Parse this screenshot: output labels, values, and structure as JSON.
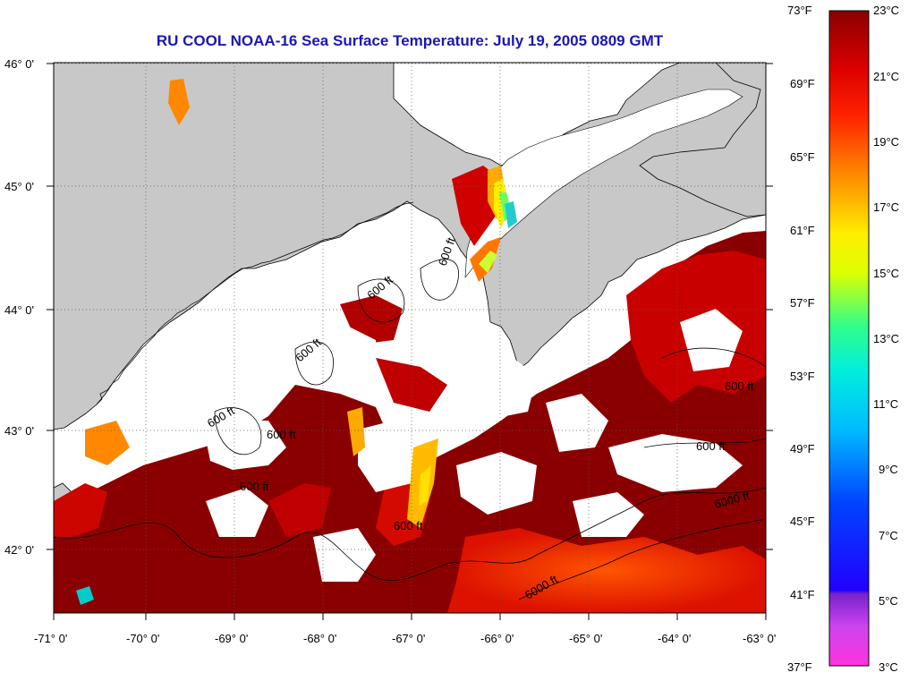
{
  "title": "RU COOL  NOAA-16  Sea Surface Temperature:  July 19, 2005 0809 GMT",
  "lat_labels": [
    "46° 0'",
    "45° 0'",
    "44° 0'",
    "43° 0'",
    "42° 0'"
  ],
  "lon_labels": [
    "-71° 0'",
    "-70° 0'",
    "-69° 0'",
    "-68° 0'",
    "-67° 0'",
    "-66° 0'",
    "-65° 0'",
    "-64° 0'",
    "-63° 0'"
  ],
  "colorbar": {
    "fahrenheit": [
      "73°F",
      "69°F",
      "65°F",
      "61°F",
      "57°F",
      "53°F",
      "49°F",
      "45°F",
      "41°F",
      "37°F"
    ],
    "celsius": [
      "23°C",
      "21°C",
      "19°C",
      "17°C",
      "15°C",
      "13°C",
      "11°C",
      "9°C",
      "7°C",
      "5°C",
      "3°C"
    ],
    "colors": [
      "#ff33dd",
      "#9933cc",
      "#2200ff",
      "#0055ff",
      "#00aaff",
      "#00eeff",
      "#22ffaa",
      "#ccff00",
      "#ffff00",
      "#ffbb00",
      "#ff6600",
      "#ff1100",
      "#cc0000",
      "#880000"
    ]
  },
  "contour_labels": [
    "600 ft",
    "6000 ft"
  ],
  "colors": {
    "land": "#c8c8c8",
    "cloud": "#ffffff",
    "warm": "#c80000",
    "hot": "#8a0000",
    "title": "#1a16b8"
  }
}
